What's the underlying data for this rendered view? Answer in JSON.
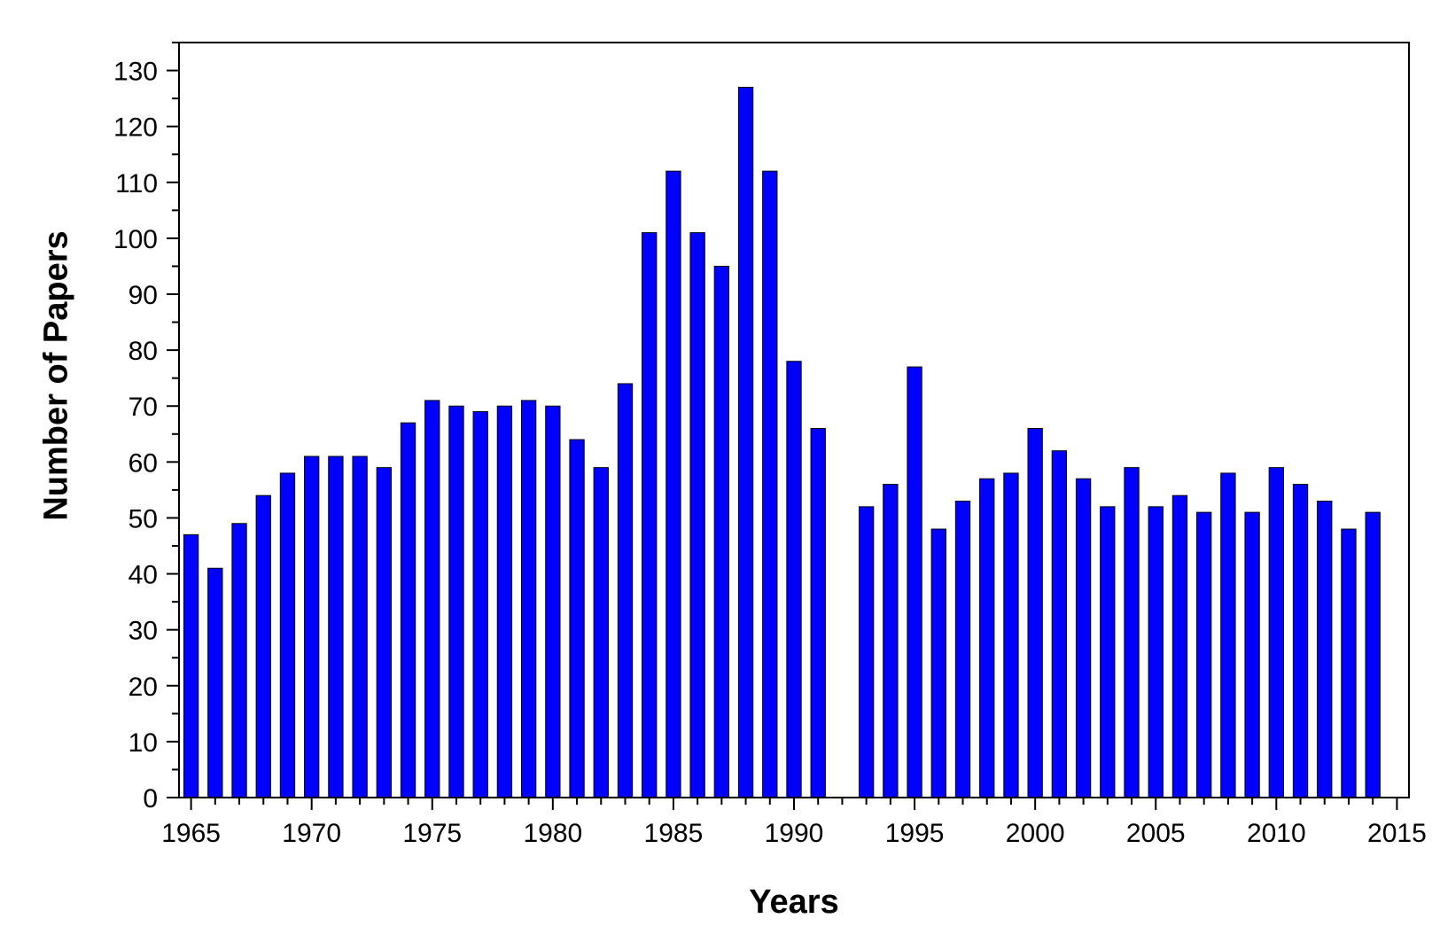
{
  "chart_data": {
    "type": "bar",
    "xlabel": "Years",
    "ylabel": "Number of Papers",
    "bar_color": "#0000ff",
    "bar_stroke": "#000000",
    "xlim": [
      1964.5,
      2015.5
    ],
    "ylim": [
      0,
      135
    ],
    "x_ticks": [
      1965,
      1970,
      1975,
      1980,
      1985,
      1990,
      1995,
      2000,
      2005,
      2010,
      2015
    ],
    "x_tick_labels": [
      "1965",
      "1970",
      "1975",
      "1980",
      "1985",
      "1990",
      "1995",
      "2000",
      "2005",
      "2010",
      "2015"
    ],
    "y_ticks": [
      0,
      10,
      20,
      30,
      40,
      50,
      60,
      70,
      80,
      90,
      100,
      110,
      120,
      130
    ],
    "y_tick_labels": [
      "0",
      "10",
      "20",
      "30",
      "40",
      "50",
      "60",
      "70",
      "80",
      "90",
      "100",
      "110",
      "120",
      "130"
    ],
    "grid": false,
    "x": [
      1965,
      1966,
      1967,
      1968,
      1969,
      1970,
      1971,
      1972,
      1973,
      1974,
      1975,
      1976,
      1977,
      1978,
      1979,
      1980,
      1981,
      1982,
      1983,
      1984,
      1985,
      1986,
      1987,
      1988,
      1989,
      1990,
      1991,
      1993,
      1994,
      1995,
      1996,
      1997,
      1998,
      1999,
      2000,
      2001,
      2002,
      2003,
      2004,
      2005,
      2006,
      2007,
      2008,
      2009,
      2010,
      2011,
      2012,
      2013,
      2014
    ],
    "values": [
      47,
      41,
      49,
      54,
      58,
      61,
      61,
      61,
      59,
      67,
      71,
      70,
      69,
      70,
      71,
      70,
      64,
      59,
      74,
      101,
      112,
      101,
      95,
      127,
      112,
      78,
      66,
      52,
      56,
      77,
      48,
      53,
      57,
      58,
      66,
      62,
      57,
      52,
      59,
      52,
      54,
      51,
      58,
      51,
      59,
      56,
      53,
      48,
      51
    ]
  }
}
